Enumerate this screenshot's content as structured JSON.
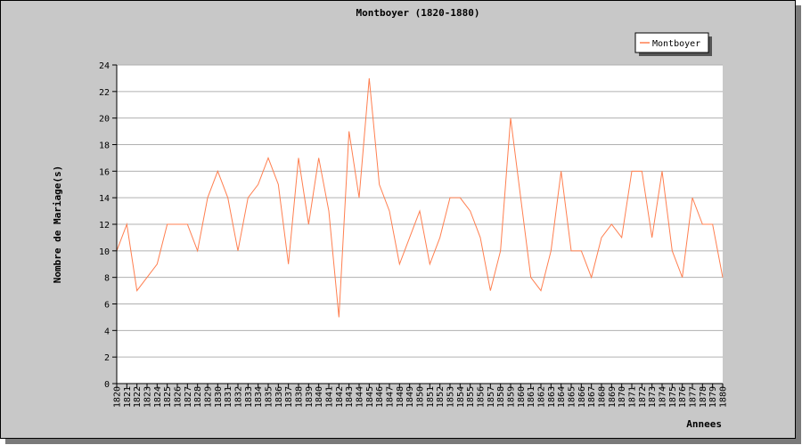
{
  "chart_data": {
    "type": "line",
    "title": "Montboyer (1820-1880)",
    "xlabel": "Annees",
    "ylabel": "Nombre de Mariage(s)",
    "ylim": [
      0,
      24
    ],
    "yticks": [
      0,
      2,
      4,
      6,
      8,
      10,
      12,
      14,
      16,
      18,
      20,
      22,
      24
    ],
    "grid": true,
    "legend_position": "top-right",
    "x": [
      1820,
      1821,
      1822,
      1823,
      1824,
      1825,
      1826,
      1827,
      1828,
      1829,
      1830,
      1831,
      1832,
      1833,
      1834,
      1835,
      1836,
      1837,
      1838,
      1839,
      1840,
      1841,
      1842,
      1843,
      1844,
      1845,
      1846,
      1847,
      1848,
      1849,
      1850,
      1851,
      1852,
      1853,
      1854,
      1855,
      1856,
      1857,
      1858,
      1859,
      1860,
      1861,
      1862,
      1863,
      1864,
      1865,
      1866,
      1867,
      1868,
      1869,
      1870,
      1871,
      1872,
      1873,
      1874,
      1875,
      1876,
      1877,
      1878,
      1879,
      1880
    ],
    "series": [
      {
        "name": "Montboyer",
        "color": "#ff7f50",
        "values": [
          10,
          12,
          7,
          8,
          9,
          12,
          12,
          12,
          10,
          14,
          16,
          14,
          10,
          14,
          15,
          17,
          15,
          9,
          17,
          12,
          17,
          13,
          5,
          19,
          14,
          23,
          15,
          13,
          9,
          11,
          13,
          9,
          11,
          14,
          14,
          13,
          11,
          7,
          10,
          20,
          14,
          8,
          7,
          10,
          16,
          10,
          10,
          8,
          11,
          12,
          11,
          16,
          16,
          11,
          16,
          10,
          8,
          14,
          12,
          12,
          8
        ]
      }
    ]
  }
}
